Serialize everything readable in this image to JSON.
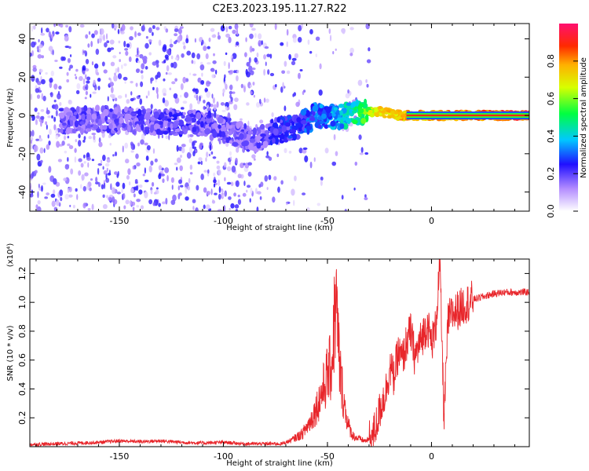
{
  "title": "C2E3.2023.195.11.27.R22",
  "colorbar": {
    "label": "Normalized spectral amplitude",
    "ticks": [
      0.0,
      0.2,
      0.4,
      0.6,
      0.8
    ],
    "tick_labels": [
      "0.0",
      "0.2",
      "0.4",
      "0.6",
      "0.8"
    ],
    "range": [
      0,
      1
    ]
  },
  "chart_data": [
    {
      "type": "heatmap",
      "name": "spectrogram",
      "xlabel": "Height of straight line (km)",
      "ylabel": "Frequency (Hz)",
      "xlim": [
        -193,
        47
      ],
      "ylim": [
        -50,
        48
      ],
      "x_ticks": [
        -150,
        -100,
        -50,
        0
      ],
      "x_tick_labels": [
        "-150",
        "-100",
        "-50",
        "0"
      ],
      "y_ticks": [
        -40,
        -20,
        0,
        20,
        40
      ],
      "y_tick_labels": [
        "-40",
        "-20",
        "0",
        "20",
        "40"
      ],
      "ridge": [
        {
          "x": -180,
          "y": -3,
          "amp": 0.22
        },
        {
          "x": -160,
          "y": -2,
          "amp": 0.24
        },
        {
          "x": -140,
          "y": -3,
          "amp": 0.25
        },
        {
          "x": -120,
          "y": -4,
          "amp": 0.26
        },
        {
          "x": -110,
          "y": -4,
          "amp": 0.24
        },
        {
          "x": -85,
          "y": -13,
          "amp": 0.22
        },
        {
          "x": -75,
          "y": -8,
          "amp": 0.28
        },
        {
          "x": -65,
          "y": -6,
          "amp": 0.32
        },
        {
          "x": -55,
          "y": 0,
          "amp": 0.36
        },
        {
          "x": -45,
          "y": -1,
          "amp": 0.42
        },
        {
          "x": -35,
          "y": 2,
          "amp": 0.55
        },
        {
          "x": -25,
          "y": 2,
          "amp": 0.8
        },
        {
          "x": -15,
          "y": 0,
          "amp": 0.82
        },
        {
          "x": 0,
          "y": 0,
          "amp": 0.85
        },
        {
          "x": 20,
          "y": 0,
          "amp": 0.9
        },
        {
          "x": 45,
          "y": 0,
          "amp": 0.95
        }
      ]
    },
    {
      "type": "line",
      "name": "snr",
      "xlabel": "Height of straight line (km)",
      "ylabel": "SNR (10 * v/v)",
      "multiplier_label": "(x10⁴)",
      "xlim": [
        -193,
        47
      ],
      "ylim": [
        0,
        1.3
      ],
      "x_ticks": [
        -150,
        -100,
        -50,
        0
      ],
      "x_tick_labels": [
        "-150",
        "-100",
        "-50",
        "0"
      ],
      "y_ticks": [
        0.2,
        0.4,
        0.6,
        0.8,
        1.0,
        1.2
      ],
      "y_tick_labels": [
        "0.2",
        "0.4",
        "0.6",
        "0.8",
        "1.0",
        "1.2"
      ],
      "color": "#e8262b",
      "series": [
        {
          "x": [
            -193,
            -180,
            -170,
            -160,
            -150,
            -140,
            -130,
            -120,
            -110,
            -100,
            -90,
            -80,
            -72,
            -68,
            -62,
            -58,
            -55,
            -52,
            -50,
            -48,
            -46,
            -44,
            -42,
            -40,
            -38,
            -36,
            -34,
            -32,
            -30,
            -28,
            -26,
            -24,
            -22,
            -20,
            -18,
            -16,
            -14,
            -12,
            -10,
            -8,
            -6,
            -4,
            -2,
            0,
            2,
            4,
            6,
            8,
            10,
            12,
            14,
            16,
            18,
            20,
            25,
            30,
            35,
            40,
            47
          ],
          "y": [
            0.015,
            0.02,
            0.025,
            0.03,
            0.04,
            0.035,
            0.04,
            0.03,
            0.025,
            0.03,
            0.02,
            0.02,
            0.02,
            0.04,
            0.09,
            0.18,
            0.28,
            0.4,
            0.5,
            0.56,
            1.02,
            0.52,
            0.3,
            0.15,
            0.08,
            0.06,
            0.05,
            0.04,
            0.05,
            0.08,
            0.18,
            0.3,
            0.38,
            0.55,
            0.48,
            0.65,
            0.6,
            0.72,
            0.8,
            0.62,
            0.7,
            0.78,
            0.85,
            0.72,
            0.82,
            1.28,
            0.2,
            0.88,
            0.92,
            0.94,
            0.96,
            0.99,
            1.0,
            1.02,
            1.04,
            1.06,
            1.07,
            1.07,
            1.07
          ]
        }
      ]
    }
  ]
}
